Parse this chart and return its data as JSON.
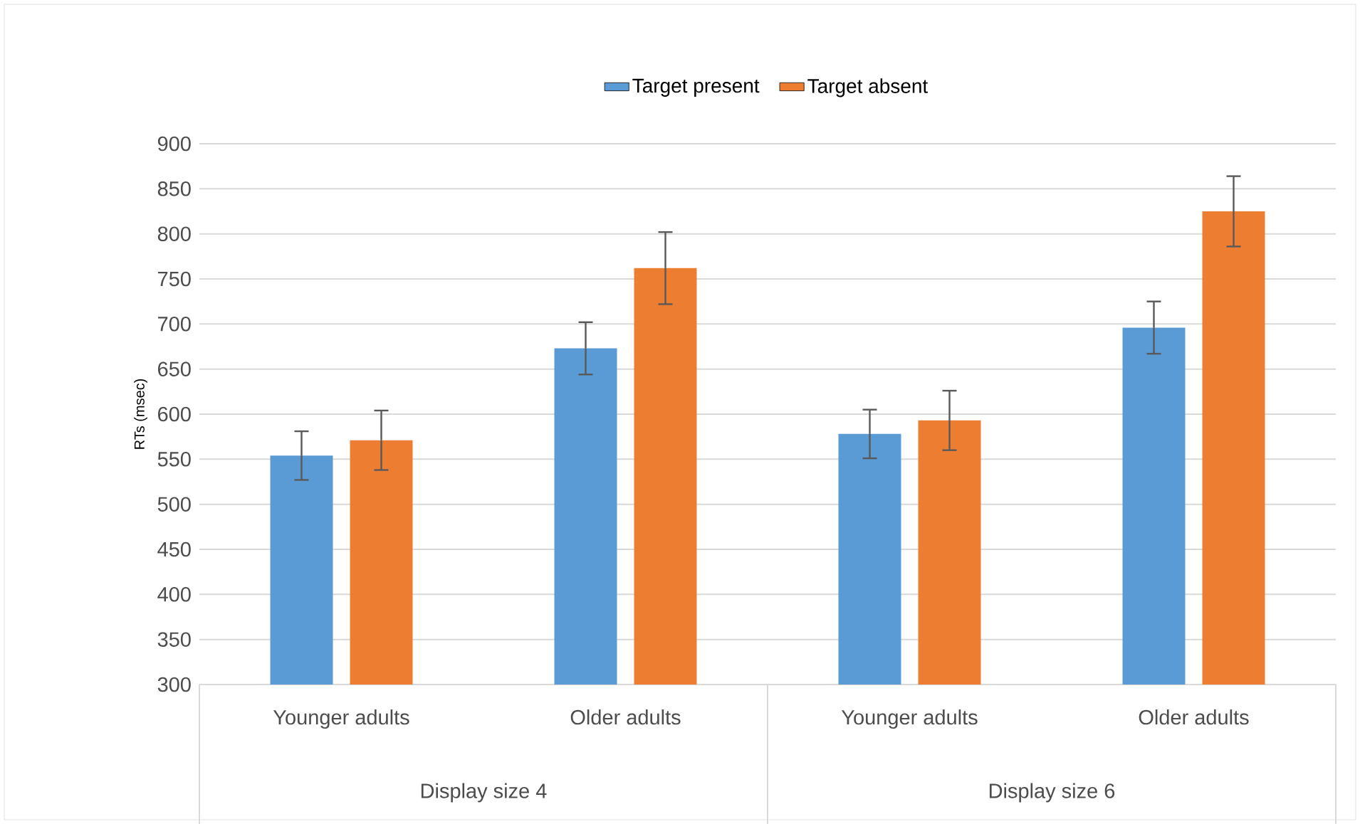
{
  "chart_data": {
    "type": "bar",
    "ylabel": "RTs (msec)",
    "categories": [
      "Younger adults",
      "Older adults",
      "Younger adults",
      "Older adults"
    ],
    "annotations": [
      "Display size 4",
      "Display size 6"
    ],
    "series": [
      {
        "name": "Target present",
        "color": "#5b9bd5",
        "values": [
          554,
          673,
          578,
          696
        ],
        "errors": [
          27,
          29,
          27,
          29
        ]
      },
      {
        "name": "Target absent",
        "color": "#ed7d31",
        "values": [
          571,
          762,
          593,
          825
        ],
        "errors": [
          33,
          40,
          33,
          39
        ]
      }
    ],
    "ylim": [
      300,
      900
    ],
    "yticks": [
      300,
      350,
      400,
      450,
      500,
      550,
      600,
      650,
      700,
      750,
      800,
      850,
      900
    ],
    "grid": "y",
    "legend": "top"
  }
}
